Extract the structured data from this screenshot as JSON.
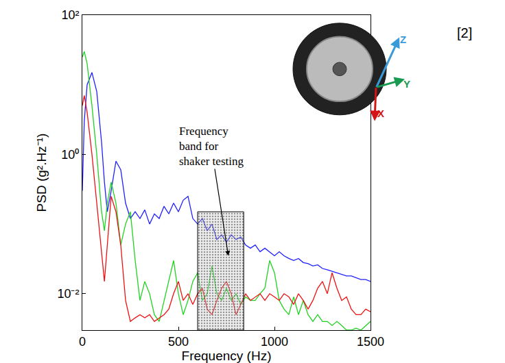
{
  "chart_data": {
    "type": "line",
    "xlabel": "Frequency (Hz)",
    "ylabel": "PSD (g².Hz⁻¹)",
    "log": "y",
    "grid": false,
    "xlim": [
      0,
      1500
    ],
    "ylim": [
      0.003,
      100
    ],
    "xticks": [
      0,
      500,
      1000,
      1500
    ],
    "yticks": [
      {
        "value": 100,
        "label": "10²"
      },
      {
        "value": 1,
        "label": "10⁰"
      },
      {
        "value": 0.01,
        "label": "10⁻²"
      }
    ],
    "x": [
      0,
      10,
      25,
      50,
      75,
      100,
      115,
      130,
      150,
      175,
      200,
      225,
      250,
      275,
      300,
      325,
      350,
      375,
      400,
      425,
      450,
      475,
      500,
      525,
      550,
      575,
      600,
      625,
      650,
      675,
      700,
      725,
      750,
      775,
      800,
      825,
      850,
      875,
      900,
      925,
      950,
      975,
      1000,
      1025,
      1050,
      1075,
      1100,
      1125,
      1150,
      1175,
      1200,
      1225,
      1250,
      1275,
      1300,
      1325,
      1350,
      1375,
      1400,
      1425,
      1450,
      1475,
      1500
    ],
    "series": [
      {
        "color": "#1f1fff",
        "values": [
          0.3,
          3,
          10,
          15,
          8,
          1.5,
          0.4,
          0.15,
          0.3,
          0.8,
          0.6,
          0.2,
          0.12,
          0.15,
          0.12,
          0.16,
          0.1,
          0.14,
          0.12,
          0.18,
          0.14,
          0.2,
          0.15,
          0.22,
          0.25,
          0.12,
          0.1,
          0.12,
          0.08,
          0.1,
          0.06,
          0.07,
          0.055,
          0.07,
          0.06,
          0.065,
          0.05,
          0.045,
          0.05,
          0.04,
          0.045,
          0.04,
          0.035,
          0.04,
          0.035,
          0.032,
          0.03,
          0.032,
          0.028,
          0.027,
          0.025,
          0.026,
          0.023,
          0.022,
          0.021,
          0.02,
          0.019,
          0.018,
          0.018,
          0.017,
          0.016,
          0.016,
          0.015
        ]
      },
      {
        "color": "#1fd21f",
        "values": [
          25,
          30,
          20,
          5,
          1,
          0.15,
          0.08,
          0.2,
          0.4,
          0.2,
          0.05,
          0.1,
          0.15,
          0.03,
          0.008,
          0.015,
          0.01,
          0.005,
          0.004,
          0.008,
          0.015,
          0.03,
          0.01,
          0.005,
          0.008,
          0.015,
          0.02,
          0.008,
          0.01,
          0.025,
          0.01,
          0.008,
          0.012,
          0.008,
          0.01,
          0.007,
          0.009,
          0.008,
          0.008,
          0.01,
          0.012,
          0.03,
          0.02,
          0.008,
          0.006,
          0.005,
          0.009,
          0.005,
          0.008,
          0.005,
          0.004,
          0.005,
          0.004,
          0.004,
          0.0035,
          0.004,
          0.0035,
          0.003,
          0.003,
          0.0032,
          0.003,
          0.0035,
          0.004
        ]
      },
      {
        "color": "#ee1111",
        "values": [
          5,
          7,
          4,
          1,
          0.2,
          0.04,
          0.015,
          0.05,
          0.25,
          0.15,
          0.05,
          0.008,
          0.004,
          0.0045,
          0.005,
          0.0045,
          0.005,
          0.004,
          0.0045,
          0.005,
          0.006,
          0.01,
          0.015,
          0.008,
          0.01,
          0.007,
          0.01,
          0.012,
          0.006,
          0.005,
          0.008,
          0.012,
          0.015,
          0.01,
          0.005,
          0.007,
          0.01,
          0.008,
          0.009,
          0.01,
          0.008,
          0.01,
          0.009,
          0.008,
          0.01,
          0.009,
          0.007,
          0.01,
          0.008,
          0.006,
          0.008,
          0.012,
          0.015,
          0.01,
          0.02,
          0.012,
          0.008,
          0.009,
          0.006,
          0.005,
          0.005,
          0.006,
          0.0055
        ]
      }
    ],
    "band": {
      "x": [
        600,
        840
      ],
      "y": [
        0.003,
        0.15
      ]
    },
    "annotation": {
      "text_lines": [
        "Frequency",
        "band for",
        "shaker testing"
      ],
      "x": 760,
      "y": 0.035
    },
    "source_label": "[2]",
    "inset_axes": [
      {
        "label": "Z",
        "color": "#3a9ad9"
      },
      {
        "label": "Y",
        "color": "#1a9a50"
      },
      {
        "label": "X",
        "color": "#d41414"
      }
    ]
  }
}
